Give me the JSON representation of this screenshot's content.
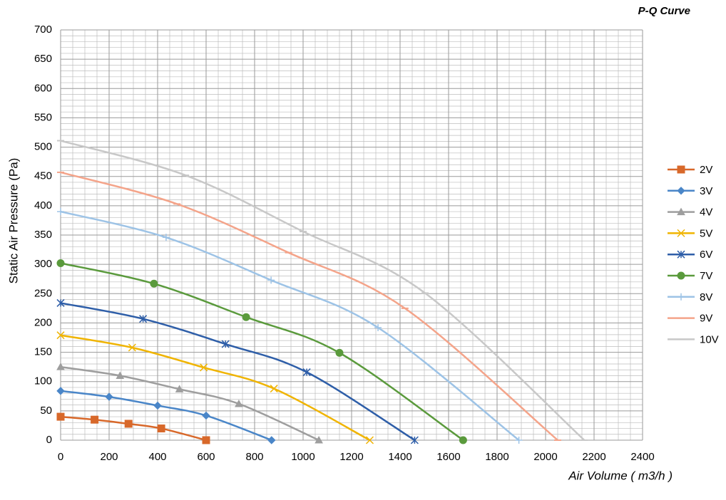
{
  "chart_data": {
    "type": "line",
    "title": "P-Q Curve",
    "x_label": "Air Volume ( m3/h )",
    "y_label": "Static Air Pressure  (Pa)",
    "xlim": [
      0,
      2400
    ],
    "xticks": [
      0,
      200,
      400,
      600,
      800,
      1000,
      1200,
      1400,
      1600,
      1800,
      2000,
      2200,
      2400
    ],
    "ylim": [
      0,
      700
    ],
    "yticks": [
      0,
      50,
      100,
      150,
      200,
      250,
      300,
      350,
      400,
      450,
      500,
      550,
      600,
      650,
      700
    ],
    "grid": true,
    "legend": "right",
    "series": [
      {
        "name": "2V",
        "color": "#d8682a",
        "marker": "square",
        "x": [
          0,
          140,
          280,
          415,
          600
        ],
        "values": [
          40,
          35,
          28,
          20,
          0
        ]
      },
      {
        "name": "3V",
        "color": "#4a86c8",
        "marker": "diamond",
        "x": [
          0,
          200,
          400,
          600,
          870
        ],
        "values": [
          84,
          74,
          59,
          42,
          0
        ]
      },
      {
        "name": "4V",
        "color": "#9e9e9e",
        "marker": "triangle",
        "x": [
          0,
          245,
          490,
          735,
          1065
        ],
        "values": [
          125,
          110,
          87,
          62,
          0
        ]
      },
      {
        "name": "5V",
        "color": "#f0b400",
        "marker": "x",
        "x": [
          0,
          295,
          590,
          880,
          1275
        ],
        "values": [
          179,
          158,
          124,
          88,
          0
        ]
      },
      {
        "name": "6V",
        "color": "#2e5ea8",
        "marker": "star",
        "x": [
          0,
          340,
          680,
          1015,
          1460
        ],
        "values": [
          234,
          207,
          164,
          116,
          0
        ]
      },
      {
        "name": "7V",
        "color": "#5a9a3c",
        "marker": "circle",
        "x": [
          0,
          385,
          765,
          1150,
          1660
        ],
        "values": [
          302,
          267,
          210,
          149,
          0
        ]
      },
      {
        "name": "8V",
        "color": "#9dc3e6",
        "marker": "plus",
        "x": [
          0,
          435,
          868,
          1309,
          1890
        ],
        "values": [
          390,
          346,
          273,
          192,
          0
        ]
      },
      {
        "name": "9V",
        "color": "#f4a48a",
        "marker": "dash",
        "x": [
          0,
          480,
          940,
          1420,
          2050
        ],
        "values": [
          457,
          403,
          320,
          225,
          0
        ]
      },
      {
        "name": "10V",
        "color": "#c8c8c8",
        "marker": "dash",
        "x": [
          0,
          515,
          1000,
          1503,
          2160
        ],
        "values": [
          511,
          452,
          356,
          251,
          0
        ]
      }
    ]
  }
}
